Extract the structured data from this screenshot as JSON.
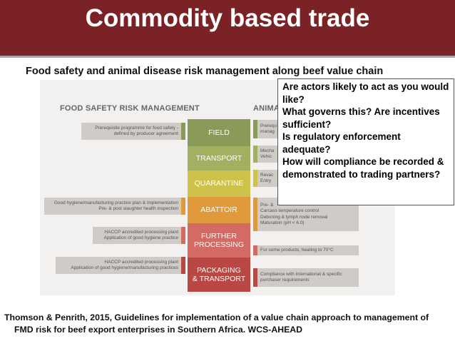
{
  "slide": {
    "title": "Commodity based trade",
    "subtitle": "Food safety and animal disease risk management along beef value chain"
  },
  "figure": {
    "left_heading": "FOOD SAFETY RISK MANAGEMENT",
    "right_heading": "ANIMA",
    "stages": [
      {
        "lines": [
          "FIELD"
        ],
        "color": "#8a9a58"
      },
      {
        "lines": [
          "TRANSPORT"
        ],
        "color": "#a2b060"
      },
      {
        "lines": [
          "QUARANTINE"
        ],
        "color": "#cfc24a"
      },
      {
        "lines": [
          "ABATTOIR"
        ],
        "color": "#e09a3c"
      },
      {
        "lines": [
          "FURTHER",
          "PROCESSING"
        ],
        "color": "#d36a64"
      },
      {
        "lines": [
          "PACKAGING",
          "& TRANSPORT"
        ],
        "color": "#b94845"
      }
    ],
    "left_boxes": [
      {
        "lines": [
          "Prerequisite programme for food safety -",
          "defined by producer agreement"
        ],
        "color": "#8a9a58"
      },
      {
        "lines": [
          "Good hygiene/manufacturing practice plan & implementation",
          "Pre- & post slaughter health inspection"
        ],
        "color": "#e09a3c"
      },
      {
        "lines": [
          "HACCP accredited processing plant",
          "Application of good hygiene practice"
        ],
        "color": "#d36a64"
      },
      {
        "lines": [
          "HACCP accredited processing plant",
          "Application of good hygiene/manufacturing practices"
        ],
        "color": "#b94845"
      }
    ],
    "right_boxes": [
      {
        "lines": [
          "Prerequ",
          "manag"
        ],
        "color": "#8a9a58"
      },
      {
        "lines": [
          "Mecha",
          "Vehic"
        ],
        "color": "#a2b060"
      },
      {
        "lines": [
          "Revac",
          "Entry"
        ],
        "color": "#cfc24a"
      },
      {
        "lines": [
          "Pre- &",
          "Carcass temperature control",
          "Deboning & lymph node removal",
          "Maturation (pH < 6.0)"
        ],
        "color": "#e09a3c"
      },
      {
        "lines": [
          "For some products, heating to 70°C"
        ],
        "color": "#d36a64"
      },
      {
        "lines": [
          "Compliance with international & specific",
          "purchaser requirements"
        ],
        "color": "#b94845"
      }
    ]
  },
  "questions": [
    "Are actors likely to act as you would",
    "like?",
    "What governs this? Are incentives",
    "sufficient?",
    "Is regulatory enforcement",
    "adequate?",
    "How will compliance be recorded &",
    "demonstrated to trading partners?"
  ],
  "citation": {
    "line1": "Thomson & Penrith, 2015, Guidelines for implementation of a value chain approach to management of",
    "line2": "FMD risk for beef export enterprises in Southern Africa. WCS-AHEAD"
  }
}
